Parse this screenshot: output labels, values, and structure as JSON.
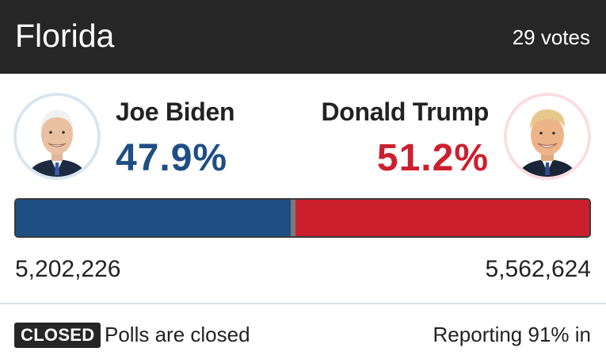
{
  "header": {
    "state": "Florida",
    "electoral_votes": "29 votes"
  },
  "candidates": [
    {
      "name": "Joe Biden",
      "percent": "47.9%",
      "votes": "5,202,226",
      "color": "#1f4e85",
      "ring_color": "#d9e6f1",
      "photo_icon": "candidate-portrait"
    },
    {
      "name": "Donald Trump",
      "percent": "51.2%",
      "votes": "5,562,624",
      "color": "#cc1f2e",
      "ring_color": "#fbdde1",
      "photo_icon": "candidate-portrait"
    }
  ],
  "result_bar": {
    "dem_share": 47.9,
    "other_share": 0.9,
    "rep_share": 51.2,
    "other_color": "#7a7a7a"
  },
  "footer": {
    "status_badge": "CLOSED",
    "status_text": "Polls are closed",
    "reporting": "Reporting 91% in"
  }
}
